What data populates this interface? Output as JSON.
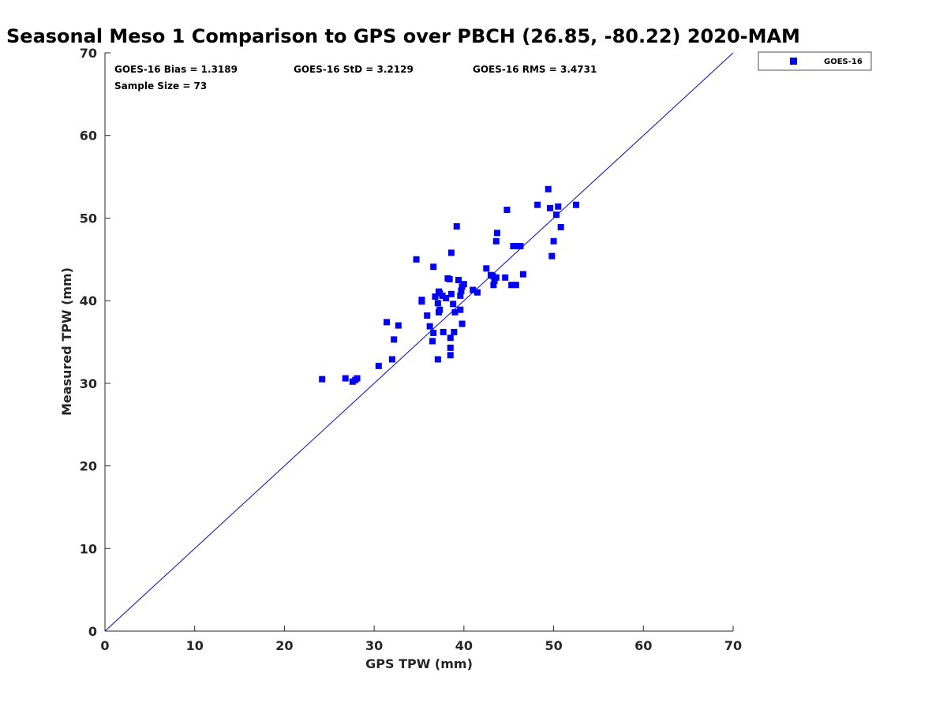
{
  "chart_data": {
    "type": "scatter",
    "title": "Seasonal Meso 1 Comparison to GPS over PBCH (26.85, -80.22) 2020-MAM",
    "xlabel": "GPS TPW (mm)",
    "ylabel": "Measured TPW (mm)",
    "xlim": [
      0,
      70
    ],
    "ylim": [
      0,
      70
    ],
    "xticks": [
      "0",
      "10",
      "20",
      "30",
      "40",
      "50",
      "60",
      "70"
    ],
    "yticks": [
      "0",
      "10",
      "20",
      "30",
      "40",
      "50",
      "60",
      "70"
    ],
    "grid": false,
    "legend_position": "outside-top-right",
    "reference_line": {
      "type": "one-to-one",
      "color": "#0000ff"
    },
    "stats": {
      "bias": "GOES-16 Bias = 1.3189",
      "std": "GOES-16 StD = 3.2129",
      "rms": "GOES-16 RMS = 3.4731",
      "sample_size": "Sample Size = 73"
    },
    "series": [
      {
        "name": "GOES-16",
        "color": "#0000ff",
        "marker": "square",
        "points": [
          [
            24.2,
            30.5
          ],
          [
            26.8,
            30.6
          ],
          [
            27.6,
            30.2
          ],
          [
            27.9,
            30.4
          ],
          [
            28.1,
            30.6
          ],
          [
            30.5,
            32.1
          ],
          [
            31.4,
            37.4
          ],
          [
            32.0,
            32.9
          ],
          [
            32.2,
            35.3
          ],
          [
            32.7,
            37.0
          ],
          [
            34.7,
            45.0
          ],
          [
            35.3,
            39.9
          ],
          [
            35.3,
            40.1
          ],
          [
            35.9,
            38.2
          ],
          [
            36.2,
            36.9
          ],
          [
            36.5,
            35.1
          ],
          [
            36.6,
            36.1
          ],
          [
            36.6,
            44.1
          ],
          [
            36.8,
            40.5
          ],
          [
            37.1,
            39.7
          ],
          [
            37.1,
            32.9
          ],
          [
            37.2,
            38.6
          ],
          [
            37.3,
            38.9
          ],
          [
            37.3,
            40.9
          ],
          [
            37.6,
            40.6
          ],
          [
            37.7,
            36.2
          ],
          [
            38.0,
            40.3
          ],
          [
            38.2,
            42.7
          ],
          [
            38.5,
            35.5
          ],
          [
            38.5,
            34.3
          ],
          [
            38.5,
            33.4
          ],
          [
            38.6,
            45.8
          ],
          [
            38.6,
            40.8
          ],
          [
            38.8,
            39.6
          ],
          [
            38.9,
            36.2
          ],
          [
            39.0,
            38.6
          ],
          [
            39.2,
            49.0
          ],
          [
            39.4,
            42.5
          ],
          [
            39.6,
            38.9
          ],
          [
            39.6,
            40.6
          ],
          [
            39.7,
            41.2
          ],
          [
            39.8,
            41.7
          ],
          [
            39.8,
            37.2
          ],
          [
            40.0,
            42.0
          ],
          [
            41.0,
            41.3
          ],
          [
            41.5,
            41.0
          ],
          [
            42.5,
            43.9
          ],
          [
            43.2,
            43.0
          ],
          [
            43.3,
            41.9
          ],
          [
            43.4,
            42.4
          ],
          [
            43.6,
            42.8
          ],
          [
            43.6,
            47.2
          ],
          [
            43.7,
            48.2
          ],
          [
            44.6,
            42.8
          ],
          [
            44.8,
            51.0
          ],
          [
            45.3,
            41.9
          ],
          [
            45.5,
            46.6
          ],
          [
            45.8,
            41.9
          ],
          [
            46.0,
            46.6
          ],
          [
            46.3,
            46.6
          ],
          [
            46.6,
            43.2
          ],
          [
            48.2,
            51.6
          ],
          [
            49.4,
            53.5
          ],
          [
            49.6,
            51.2
          ],
          [
            49.8,
            45.4
          ],
          [
            50.0,
            47.2
          ],
          [
            50.3,
            50.4
          ],
          [
            50.5,
            51.4
          ],
          [
            50.8,
            48.9
          ],
          [
            52.5,
            51.6
          ],
          [
            43.0,
            43.1
          ],
          [
            38.4,
            42.6
          ],
          [
            37.2,
            41.1
          ]
        ]
      }
    ]
  }
}
